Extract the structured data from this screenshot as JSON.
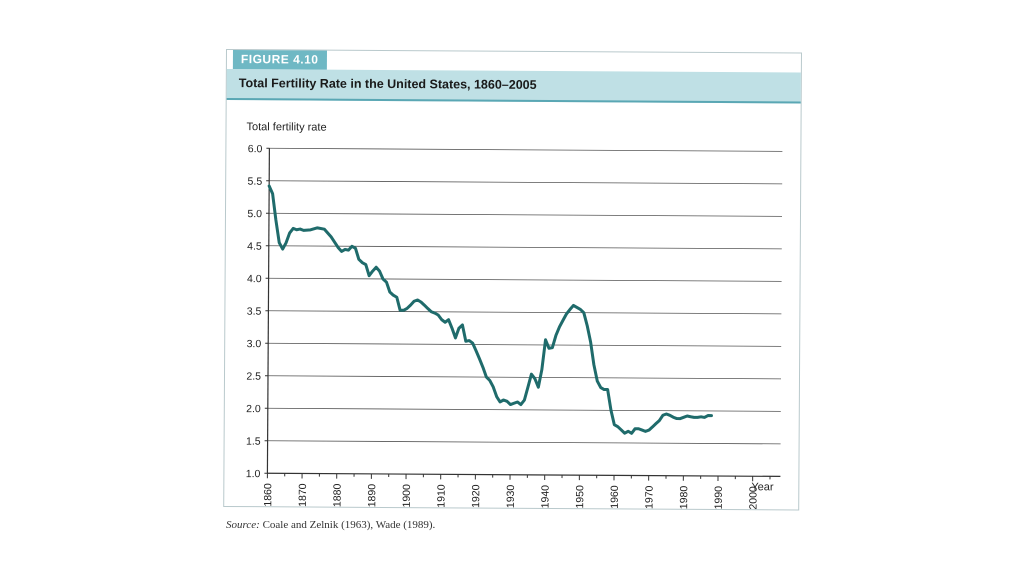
{
  "figure": {
    "label": "FIGURE 4.10",
    "title": "Total Fertility Rate in the United States, 1860–2005",
    "source_label": "Source:",
    "source_text": " Coale and Zelnik (1963), Wade (1989)."
  },
  "colors": {
    "line": "#1f6b6b",
    "label_bg": "#6fb8c4",
    "title_bg": "#bfe0e5"
  },
  "chart_data": {
    "type": "line",
    "title": "Total Fertility Rate in the United States, 1860–2005",
    "xlabel": "Year",
    "ylabel": "Total fertility rate",
    "xlim": [
      1860,
      2008
    ],
    "ylim": [
      1.0,
      6.0
    ],
    "x_ticks": [
      1860,
      1870,
      1880,
      1890,
      1900,
      1910,
      1920,
      1930,
      1940,
      1950,
      1960,
      1970,
      1980,
      1990,
      2000
    ],
    "y_ticks": [
      "1.0",
      "1.5",
      "2.0",
      "2.5",
      "3.0",
      "3.5",
      "4.0",
      "4.5",
      "5.0",
      "5.5",
      "6.0"
    ],
    "grid": "horizontal",
    "series": [
      {
        "values": [
          [
            1860,
            5.42
          ],
          [
            1861,
            5.3
          ],
          [
            1862,
            4.9
          ],
          [
            1863,
            4.55
          ],
          [
            1864,
            4.45
          ],
          [
            1865,
            4.55
          ],
          [
            1866,
            4.7
          ],
          [
            1867,
            4.77
          ],
          [
            1868,
            4.75
          ],
          [
            1869,
            4.76
          ],
          [
            1870,
            4.74
          ],
          [
            1872,
            4.75
          ],
          [
            1874,
            4.78
          ],
          [
            1876,
            4.76
          ],
          [
            1878,
            4.64
          ],
          [
            1880,
            4.48
          ],
          [
            1881,
            4.42
          ],
          [
            1882,
            4.45
          ],
          [
            1883,
            4.44
          ],
          [
            1884,
            4.5
          ],
          [
            1885,
            4.47
          ],
          [
            1886,
            4.3
          ],
          [
            1887,
            4.25
          ],
          [
            1888,
            4.22
          ],
          [
            1889,
            4.05
          ],
          [
            1890,
            4.12
          ],
          [
            1891,
            4.18
          ],
          [
            1892,
            4.12
          ],
          [
            1893,
            4.0
          ],
          [
            1894,
            3.95
          ],
          [
            1895,
            3.8
          ],
          [
            1896,
            3.75
          ],
          [
            1897,
            3.72
          ],
          [
            1898,
            3.52
          ],
          [
            1899,
            3.52
          ],
          [
            1900,
            3.55
          ],
          [
            1901,
            3.6
          ],
          [
            1902,
            3.66
          ],
          [
            1903,
            3.68
          ],
          [
            1904,
            3.65
          ],
          [
            1905,
            3.6
          ],
          [
            1906,
            3.55
          ],
          [
            1907,
            3.5
          ],
          [
            1908,
            3.48
          ],
          [
            1909,
            3.45
          ],
          [
            1910,
            3.38
          ],
          [
            1911,
            3.34
          ],
          [
            1912,
            3.38
          ],
          [
            1913,
            3.25
          ],
          [
            1914,
            3.1
          ],
          [
            1915,
            3.25
          ],
          [
            1916,
            3.3
          ],
          [
            1917,
            3.05
          ],
          [
            1918,
            3.06
          ],
          [
            1919,
            3.02
          ],
          [
            1920,
            2.9
          ],
          [
            1921,
            2.78
          ],
          [
            1922,
            2.65
          ],
          [
            1923,
            2.5
          ],
          [
            1924,
            2.45
          ],
          [
            1925,
            2.35
          ],
          [
            1926,
            2.2
          ],
          [
            1927,
            2.12
          ],
          [
            1928,
            2.15
          ],
          [
            1929,
            2.13
          ],
          [
            1930,
            2.08
          ],
          [
            1931,
            2.1
          ],
          [
            1932,
            2.12
          ],
          [
            1933,
            2.08
          ],
          [
            1934,
            2.15
          ],
          [
            1935,
            2.35
          ],
          [
            1936,
            2.55
          ],
          [
            1937,
            2.48
          ],
          [
            1938,
            2.35
          ],
          [
            1939,
            2.62
          ],
          [
            1940,
            3.08
          ],
          [
            1941,
            2.95
          ],
          [
            1942,
            2.96
          ],
          [
            1943,
            3.15
          ],
          [
            1944,
            3.28
          ],
          [
            1945,
            3.38
          ],
          [
            1946,
            3.48
          ],
          [
            1947,
            3.55
          ],
          [
            1948,
            3.61
          ],
          [
            1949,
            3.58
          ],
          [
            1950,
            3.55
          ],
          [
            1951,
            3.5
          ],
          [
            1952,
            3.3
          ],
          [
            1953,
            3.05
          ],
          [
            1954,
            2.7
          ],
          [
            1955,
            2.45
          ],
          [
            1956,
            2.35
          ],
          [
            1957,
            2.32
          ],
          [
            1958,
            2.32
          ],
          [
            1959,
            2.0
          ],
          [
            1960,
            1.78
          ],
          [
            1961,
            1.75
          ],
          [
            1962,
            1.7
          ],
          [
            1963,
            1.65
          ],
          [
            1964,
            1.68
          ],
          [
            1965,
            1.65
          ],
          [
            1966,
            1.72
          ],
          [
            1967,
            1.72
          ],
          [
            1968,
            1.7
          ],
          [
            1969,
            1.68
          ],
          [
            1970,
            1.7
          ],
          [
            1971,
            1.75
          ],
          [
            1972,
            1.8
          ],
          [
            1973,
            1.85
          ],
          [
            1974,
            1.93
          ],
          [
            1975,
            1.95
          ],
          [
            1976,
            1.93
          ],
          [
            1977,
            1.9
          ],
          [
            1978,
            1.88
          ],
          [
            1979,
            1.88
          ],
          [
            1980,
            1.9
          ],
          [
            1981,
            1.92
          ],
          [
            1982,
            1.91
          ],
          [
            1983,
            1.9
          ],
          [
            1984,
            1.9
          ],
          [
            1985,
            1.91
          ],
          [
            1986,
            1.9
          ],
          [
            1987,
            1.93
          ],
          [
            1988,
            1.93
          ]
        ]
      }
    ]
  }
}
